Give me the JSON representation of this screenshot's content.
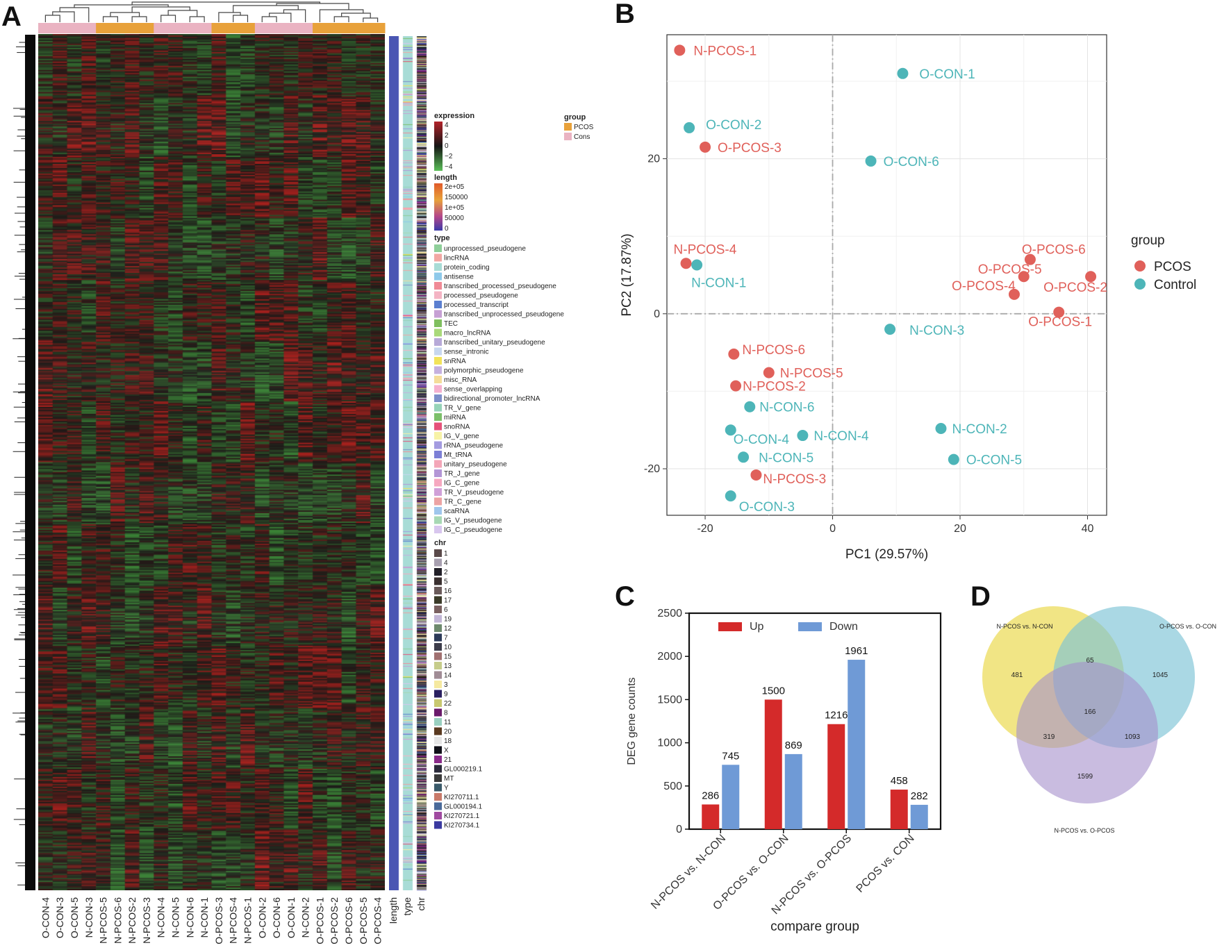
{
  "panels": {
    "a": "A",
    "b": "B",
    "c": "C",
    "d": "D"
  },
  "colors": {
    "pcos": "#e0605a",
    "control": "#4db5b8",
    "up": "#d42a2a",
    "down": "#6f9ad6",
    "venn_a": "#ecdc5c",
    "venn_b": "#7cc3d6",
    "venn_c": "#a58fcc",
    "group_pcos": "#e8a13a",
    "group_cons": "#eab3c2",
    "length_bar": "#4a56b3",
    "type_bar": "#a8dcd6"
  },
  "heatmap": {
    "samples": [
      "O-CON-4",
      "O-CON-3",
      "O-CON-5",
      "N-CON-3",
      "N-PCOS-5",
      "N-PCOS-6",
      "N-PCOS-2",
      "N-PCOS-3",
      "N-CON-4",
      "N-CON-5",
      "N-CON-6",
      "N-CON-1",
      "O-PCOS-3",
      "N-PCOS-4",
      "N-PCOS-1",
      "O-CON-2",
      "O-CON-6",
      "O-CON-1",
      "N-CON-2",
      "O-PCOS-1",
      "O-PCOS-2",
      "O-PCOS-6",
      "O-PCOS-5",
      "O-PCOS-4"
    ],
    "group_strip": [
      "Cons",
      "Cons",
      "Cons",
      "Cons",
      "PCOS",
      "PCOS",
      "PCOS",
      "PCOS",
      "Cons",
      "Cons",
      "Cons",
      "Cons",
      "PCOS",
      "PCOS",
      "PCOS",
      "Cons",
      "Cons",
      "Cons",
      "Cons",
      "PCOS",
      "PCOS",
      "PCOS",
      "PCOS",
      "PCOS"
    ],
    "annot_columns": [
      "length",
      "type",
      "chr"
    ],
    "legend": {
      "group_title": "group",
      "group_items": [
        "PCOS",
        "Cons"
      ],
      "expression_title": "expression",
      "expression_ticks": [
        "4",
        "2",
        "0",
        "−2",
        "−4"
      ],
      "length_title": "length",
      "length_ticks": [
        "2e+05",
        "150000",
        "1e+05",
        "50000",
        "0"
      ],
      "type_title": "type",
      "type_items": [
        {
          "label": "unprocessed_pseudogene",
          "color": "#8fcf9a"
        },
        {
          "label": "lincRNA",
          "color": "#f2a7a3"
        },
        {
          "label": "protein_coding",
          "color": "#a8dcd6"
        },
        {
          "label": "antisense",
          "color": "#8ec9ea"
        },
        {
          "label": "transcribed_processed_pseudogene",
          "color": "#f08a96"
        },
        {
          "label": "processed_pseudogene",
          "color": "#f4b4c4"
        },
        {
          "label": "processed_transcript",
          "color": "#5b7fd0"
        },
        {
          "label": "transcribed_unprocessed_pseudogene",
          "color": "#c6a0d4"
        },
        {
          "label": "TEC",
          "color": "#7fbf5f"
        },
        {
          "label": "macro_lncRNA",
          "color": "#a9d97a"
        },
        {
          "label": "transcribed_unitary_pseudogene",
          "color": "#b7a9d8"
        },
        {
          "label": "sense_intronic",
          "color": "#c7d7ef"
        },
        {
          "label": "snRNA",
          "color": "#f2e35a"
        },
        {
          "label": "polymorphic_pseudogene",
          "color": "#c5b0df"
        },
        {
          "label": "misc_RNA",
          "color": "#f4dd9a"
        },
        {
          "label": "sense_overlapping",
          "color": "#f5b0cf"
        },
        {
          "label": "bidirectional_promoter_lncRNA",
          "color": "#7d8ec9"
        },
        {
          "label": "TR_V_gene",
          "color": "#96d3b8"
        },
        {
          "label": "miRNA",
          "color": "#7cc06a"
        },
        {
          "label": "snoRNA",
          "color": "#e6527a"
        },
        {
          "label": "IG_V_gene",
          "color": "#f7f2a6"
        },
        {
          "label": "rRNA_pseudogene",
          "color": "#a39be0"
        },
        {
          "label": "Mt_tRNA",
          "color": "#7c7fd6"
        },
        {
          "label": "unitary_pseudogene",
          "color": "#f3a6b8"
        },
        {
          "label": "TR_J_gene",
          "color": "#b396d6"
        },
        {
          "label": "IG_C_gene",
          "color": "#f6a8c0"
        },
        {
          "label": "TR_V_pseudogene",
          "color": "#d0a0d8"
        },
        {
          "label": "TR_C_gene",
          "color": "#eca3a3"
        },
        {
          "label": "scaRNA",
          "color": "#9fc6ec"
        },
        {
          "label": "IG_V_pseudogene",
          "color": "#a7d8b4"
        },
        {
          "label": "IG_C_pseudogene",
          "color": "#d8c6ee"
        }
      ],
      "chr_title": "chr",
      "chr_items": [
        {
          "label": "1",
          "color": "#5a4a4a"
        },
        {
          "label": "4",
          "color": "#a8a0b0"
        },
        {
          "label": "2",
          "color": "#222028"
        },
        {
          "label": "5",
          "color": "#3a3030"
        },
        {
          "label": "16",
          "color": "#6a5a5a"
        },
        {
          "label": "17",
          "color": "#3a3a28"
        },
        {
          "label": "6",
          "color": "#7a6060"
        },
        {
          "label": "19",
          "color": "#c2b6d6"
        },
        {
          "label": "12",
          "color": "#6e8a6e"
        },
        {
          "label": "7",
          "color": "#2c3a58"
        },
        {
          "label": "10",
          "color": "#3c3c4a"
        },
        {
          "label": "15",
          "color": "#a07070"
        },
        {
          "label": "13",
          "color": "#c6cc8a"
        },
        {
          "label": "14",
          "color": "#a08c96"
        },
        {
          "label": "3",
          "color": "#f5e9a0"
        },
        {
          "label": "9",
          "color": "#2a2060"
        },
        {
          "label": "22",
          "color": "#c8c870"
        },
        {
          "label": "8",
          "color": "#6a1a6a"
        },
        {
          "label": "11",
          "color": "#9ad0c0"
        },
        {
          "label": "20",
          "color": "#5a3a20"
        },
        {
          "label": "18",
          "color": "#e6e6e6"
        },
        {
          "label": "X",
          "color": "#101018"
        },
        {
          "label": "21",
          "color": "#8a2a8a"
        },
        {
          "label": "GL000219.1",
          "color": "#2a2a3a"
        },
        {
          "label": "MT",
          "color": "#3a3a3a"
        },
        {
          "label": "Y",
          "color": "#3a5a6a"
        },
        {
          "label": "KI270711.1",
          "color": "#c87a6a"
        },
        {
          "label": "GL000194.1",
          "color": "#4a6a9a"
        },
        {
          "label": "KI270721.1",
          "color": "#a04aa0"
        },
        {
          "label": "KI270734.1",
          "color": "#3a3aa0"
        }
      ]
    }
  },
  "chart_data": [
    {
      "type": "scatter",
      "panel": "B",
      "title": "",
      "xlabel": "PC1 (29.57%)",
      "ylabel": "PC2 (17.87%)",
      "xlim": [
        -26,
        43
      ],
      "ylim": [
        -26,
        36
      ],
      "xticks": [
        -20,
        0,
        20,
        40
      ],
      "yticks": [
        -20,
        0,
        20
      ],
      "grid": true,
      "legend_title": "group",
      "legend_position": "right",
      "series": [
        {
          "name": "PCOS",
          "points": [
            {
              "label": "N-PCOS-1",
              "x": -24,
              "y": 34
            },
            {
              "label": "O-PCOS-3",
              "x": -20,
              "y": 21.5
            },
            {
              "label": "N-PCOS-4",
              "x": -23,
              "y": 6.5
            },
            {
              "label": "O-PCOS-6",
              "x": 31,
              "y": 7
            },
            {
              "label": "O-PCOS-5",
              "x": 30,
              "y": 4.8
            },
            {
              "label": "O-PCOS-4",
              "x": 28.5,
              "y": 2.5
            },
            {
              "label": "O-PCOS-2",
              "x": 40.5,
              "y": 4.8
            },
            {
              "label": "O-PCOS-1",
              "x": 35.5,
              "y": 0.2
            },
            {
              "label": "N-PCOS-6",
              "x": -15.5,
              "y": -5.2
            },
            {
              "label": "N-PCOS-5",
              "x": -10,
              "y": -7.6
            },
            {
              "label": "N-PCOS-2",
              "x": -15.2,
              "y": -9.3
            },
            {
              "label": "N-PCOS-3",
              "x": -12,
              "y": -20.8
            }
          ]
        },
        {
          "name": "Control",
          "points": [
            {
              "label": "O-CON-1",
              "x": 11,
              "y": 31
            },
            {
              "label": "O-CON-2",
              "x": -22.5,
              "y": 24
            },
            {
              "label": "O-CON-6",
              "x": 6,
              "y": 19.7
            },
            {
              "label": "N-CON-1",
              "x": -21.3,
              "y": 6.3
            },
            {
              "label": "N-CON-3",
              "x": 9,
              "y": -2
            },
            {
              "label": "N-CON-6",
              "x": -13,
              "y": -12
            },
            {
              "label": "O-CON-4",
              "x": -16,
              "y": -15
            },
            {
              "label": "N-CON-4",
              "x": -4.7,
              "y": -15.7
            },
            {
              "label": "N-CON-2",
              "x": 17,
              "y": -14.8
            },
            {
              "label": "N-CON-5",
              "x": -14,
              "y": -18.5
            },
            {
              "label": "O-CON-5",
              "x": 19,
              "y": -18.8
            },
            {
              "label": "O-CON-3",
              "x": -16,
              "y": -23.5
            }
          ]
        }
      ]
    },
    {
      "type": "bar",
      "panel": "C",
      "title": "",
      "xlabel": "compare group",
      "ylabel": "DEG gene counts",
      "ylim": [
        0,
        2500
      ],
      "yticks": [
        0,
        500,
        1000,
        1500,
        2000,
        2500
      ],
      "legend_position": "top-left",
      "categories": [
        "N-PCOS vs. N-CON",
        "O-PCOS vs. O-CON",
        "N-PCOS vs. O-PCOS",
        "PCOS vs. CON"
      ],
      "series": [
        {
          "name": "Up",
          "values": [
            286,
            1500,
            1216,
            458
          ]
        },
        {
          "name": "Down",
          "values": [
            745,
            869,
            1961,
            282
          ]
        }
      ]
    }
  ],
  "venn": {
    "set_labels": [
      "N-PCOS vs. N-CON",
      "O-PCOS vs. O-CON",
      "N-PCOS vs. O-PCOS"
    ],
    "regions": {
      "a_only": "481",
      "ab": "65",
      "b_only": "1045",
      "abc": "166",
      "ac": "319",
      "bc": "1093",
      "c_only": "1599"
    }
  }
}
